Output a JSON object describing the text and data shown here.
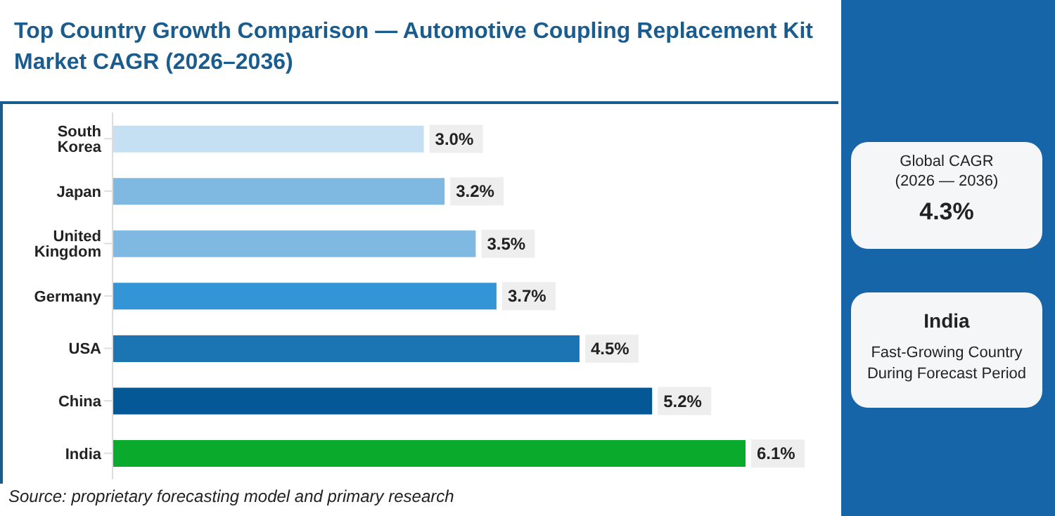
{
  "chart_data": {
    "type": "bar",
    "orientation": "horizontal",
    "title": "Top Country Growth Comparison — Automotive Coupling Replacement Kit Market CAGR (2026–2036)",
    "categories": [
      "South Korea",
      "Japan",
      "United Kingdom",
      "Germany",
      "USA",
      "China",
      "India"
    ],
    "values": [
      3.0,
      3.2,
      3.5,
      3.7,
      4.5,
      5.2,
      6.1
    ],
    "value_labels": [
      "3.0%",
      "3.2%",
      "3.5%",
      "3.7%",
      "4.5%",
      "5.2%",
      "6.1%"
    ],
    "colors": [
      "#c5e0f2",
      "#7fb8e0",
      "#7fb8e0",
      "#3394d6",
      "#1c75b3",
      "#055896",
      "#0aab2c"
    ],
    "annotations": [
      "Global CAGR",
      "(2026 — 2036)",
      "4.3%",
      "India",
      "Fast-Growing Country During Forecast Period",
      "Source: proprietary forecasting model and primary research"
    ],
    "data_labels": false
  }
}
